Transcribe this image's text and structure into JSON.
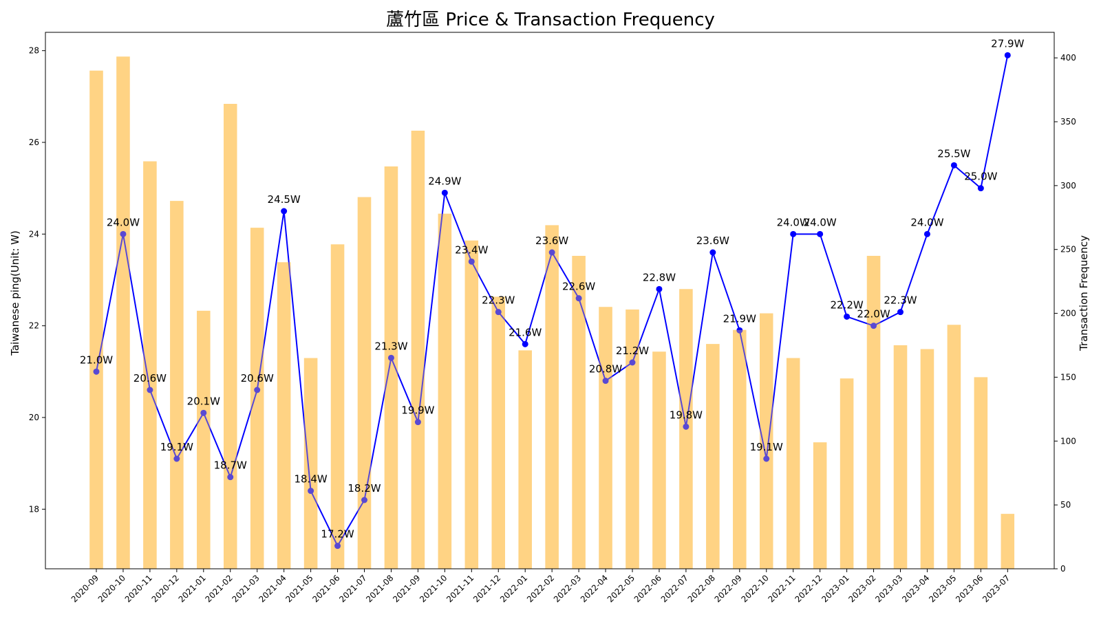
{
  "chart_data": {
    "type": "bar",
    "title": "蘆竹區 Price & Transaction Frequency",
    "ylabel_left": "Taiwanese ping(Unit: W)",
    "ylabel_right": "Transaction Frequency",
    "ylim_left": [
      16.7,
      28.4
    ],
    "ylim_right": [
      0,
      420
    ],
    "yticks_left": [
      18,
      20,
      22,
      24,
      26,
      28
    ],
    "yticks_right": [
      0,
      50,
      100,
      150,
      200,
      250,
      300,
      350,
      400
    ],
    "grid": false,
    "categories": [
      "2020-09",
      "2020-10",
      "2020-11",
      "2020-12",
      "2021-01",
      "2021-02",
      "2021-03",
      "2021-04",
      "2021-05",
      "2021-06",
      "2021-07",
      "2021-08",
      "2021-09",
      "2021-10",
      "2021-11",
      "2021-12",
      "2022-01",
      "2022-02",
      "2022-03",
      "2022-04",
      "2022-05",
      "2022-06",
      "2022-07",
      "2022-08",
      "2022-09",
      "2022-10",
      "2022-11",
      "2022-12",
      "2023-01",
      "2023-02",
      "2023-03",
      "2023-04",
      "2023-05",
      "2023-06",
      "2023-07"
    ],
    "series": [
      {
        "kind": "bar",
        "axis": "right",
        "color": "#FFD280",
        "values": [
          390,
          401,
          319,
          288,
          202,
          364,
          267,
          240,
          165,
          254,
          291,
          315,
          343,
          278,
          257,
          213,
          171,
          269,
          245,
          205,
          203,
          170,
          219,
          176,
          187,
          200,
          165,
          99,
          149,
          245,
          175,
          172,
          191,
          150,
          43
        ]
      },
      {
        "kind": "line",
        "axis": "left",
        "color": "#0000FF",
        "values": [
          21.0,
          24.0,
          20.6,
          19.1,
          20.1,
          18.7,
          20.6,
          24.5,
          18.4,
          17.2,
          18.2,
          21.3,
          19.9,
          24.9,
          23.4,
          22.3,
          21.6,
          23.6,
          22.6,
          20.8,
          21.2,
          22.8,
          19.8,
          23.6,
          21.9,
          19.1,
          24.0,
          24.0,
          22.2,
          22.0,
          22.3,
          24.0,
          25.5,
          25.0,
          27.9
        ],
        "labels": [
          "21.0W",
          "24.0W",
          "20.6W",
          "19.1W",
          "20.1W",
          "18.7W",
          "20.6W",
          "24.5W",
          "18.4W",
          "17.2W",
          "18.2W",
          "21.3W",
          "19.9W",
          "24.9W",
          "23.4W",
          "22.3W",
          "21.6W",
          "23.6W",
          "22.6W",
          "20.8W",
          "21.2W",
          "22.8W",
          "19.8W",
          "23.6W",
          "21.9W",
          "19.1W",
          "24.0W",
          "24.0W",
          "22.2W",
          "22.0W",
          "22.3W",
          "24.0W",
          "25.5W",
          "25.0W",
          "27.9W"
        ]
      }
    ]
  }
}
